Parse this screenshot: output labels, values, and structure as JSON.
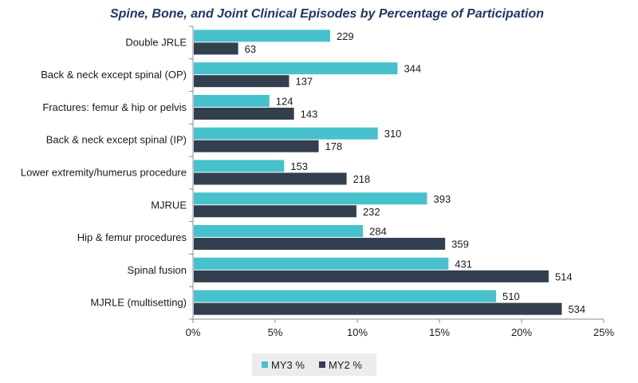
{
  "chart_data": {
    "type": "bar",
    "orientation": "horizontal",
    "title": "Spine, Bone, and Joint Clinical Episodes by Percentage of Participation",
    "categories": [
      "Double JRLE",
      "Back & neck except spinal (OP)",
      "Fractures: femur & hip or pelvis",
      "Back & neck except spinal (IP)",
      "Lower extremity/humerus procedure",
      "MJRUE",
      "Hip & femur procedures",
      "Spinal fusion",
      "MJRLE (multisetting)"
    ],
    "series": [
      {
        "name": "MY3 %",
        "color": "#47c1cc",
        "values": [
          8.3,
          12.4,
          4.6,
          11.2,
          5.5,
          14.2,
          10.3,
          15.5,
          18.4
        ],
        "labels": [
          "229",
          "344",
          "124",
          "310",
          "153",
          "393",
          "284",
          "431",
          "510"
        ]
      },
      {
        "name": "MY2 %",
        "color": "#323f4f",
        "values": [
          2.7,
          5.8,
          6.1,
          7.6,
          9.3,
          9.9,
          15.3,
          21.6,
          22.4
        ],
        "labels": [
          "63",
          "137",
          "143",
          "178",
          "218",
          "232",
          "359",
          "514",
          "534"
        ]
      }
    ],
    "xlim": [
      0,
      25
    ],
    "xticks": [
      "0%",
      "5%",
      "10%",
      "15%",
      "20%",
      "25%"
    ],
    "xlabel": "",
    "ylabel": "",
    "grid": false,
    "legend_position": "bottom"
  }
}
